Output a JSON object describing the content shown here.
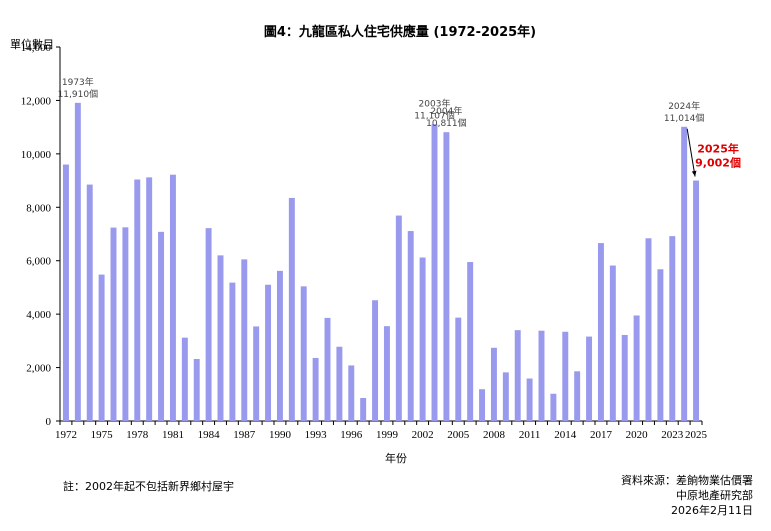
{
  "chart_data": {
    "type": "bar",
    "title": "圖4：九龍區私人住宅供應量 (1972-2025年)",
    "ylabel": "單位數目",
    "xlabel": "年份",
    "ylim": [
      0,
      14000
    ],
    "yticks": [
      0,
      2000,
      4000,
      6000,
      8000,
      10000,
      12000,
      14000
    ],
    "ytick_labels": [
      "0",
      "2,000",
      "4,000",
      "6,000",
      "8,000",
      "10,000",
      "12,000",
      "14,000"
    ],
    "xtick_labels": [
      "1972",
      "1975",
      "1978",
      "1981",
      "1984",
      "1987",
      "1990",
      "1993",
      "1996",
      "1999",
      "2002",
      "2005",
      "2008",
      "2011",
      "2014",
      "2017",
      "2020",
      "2023",
      "2025"
    ],
    "grid": false,
    "bar_color": "#9999ee",
    "categories": [
      "1972",
      "1973",
      "1974",
      "1975",
      "1976",
      "1977",
      "1978",
      "1979",
      "1980",
      "1981",
      "1982",
      "1983",
      "1984",
      "1985",
      "1986",
      "1987",
      "1988",
      "1989",
      "1990",
      "1991",
      "1992",
      "1993",
      "1994",
      "1995",
      "1996",
      "1997",
      "1998",
      "1999",
      "2000",
      "2001",
      "2002",
      "2003",
      "2004",
      "2005",
      "2006",
      "2007",
      "2008",
      "2009",
      "2010",
      "2011",
      "2012",
      "2013",
      "2014",
      "2015",
      "2016",
      "2017",
      "2018",
      "2019",
      "2020",
      "2021",
      "2022",
      "2023",
      "2024",
      "2025"
    ],
    "values": [
      9600,
      11910,
      8850,
      5480,
      7240,
      7250,
      9040,
      9120,
      7080,
      9220,
      3120,
      2320,
      7220,
      6200,
      5180,
      6050,
      3540,
      5100,
      5620,
      8350,
      5040,
      2360,
      3860,
      2780,
      2080,
      860,
      4520,
      3550,
      7690,
      7110,
      6120,
      11107,
      10811,
      3870,
      5950,
      1190,
      2740,
      1820,
      3400,
      1590,
      3380,
      1020,
      3340,
      1860,
      3160,
      6660,
      5820,
      3220,
      3950,
      6840,
      5680,
      6920,
      11014,
      9002
    ],
    "annotations": [
      {
        "category": "1973",
        "lines": [
          "1973年",
          "11,910個"
        ],
        "color": "#444444"
      },
      {
        "category": "2003",
        "lines": [
          "2003年",
          "11,107個"
        ],
        "color": "#444444"
      },
      {
        "category": "2004",
        "lines": [
          "2004年",
          "10,811個"
        ],
        "color": "#444444"
      },
      {
        "category": "2024",
        "lines": [
          "2024年",
          "11,014個"
        ],
        "color": "#444444"
      },
      {
        "category": "2025",
        "lines": [
          "2025年",
          "9,002個"
        ],
        "color": "#e00000",
        "arrow": true
      }
    ]
  },
  "notes": {
    "footnote": "註：2002年起不包括新界鄉村屋宇",
    "source_1": "資料來源：差餉物業估價署",
    "source_2": "中原地產研究部",
    "date": "2026年2月11日"
  }
}
